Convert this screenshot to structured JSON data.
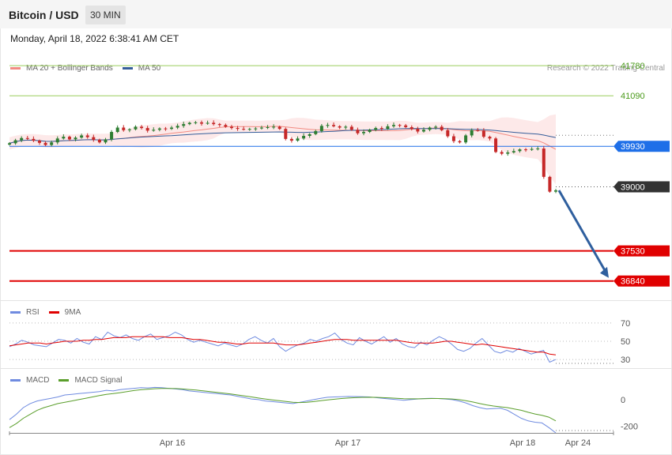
{
  "header": {
    "title": "Bitcoin / USD",
    "timeframe": "30 MIN"
  },
  "datetime": "Monday, April 18, 2022 6:38:41 AM CET",
  "credit": "Research © 2022 Trading Central",
  "colors": {
    "bb": "#f28b82",
    "ma50": "#355e9a",
    "level": "#9acd5c",
    "support": "#e00000",
    "price": "#333333",
    "resistance_blue": "#1e6fe8",
    "rsi": "#6f8be0",
    "rsi_ma": "#e00000",
    "macd": "#6f8be0",
    "signal": "#5a9e2b",
    "up_candle": "#2e7d32",
    "down_candle": "#c62828"
  },
  "main_legend": [
    {
      "label": "MA 20 + Bollinger Bands",
      "color": "#f28b82"
    },
    {
      "label": "MA 50",
      "color": "#355e9a"
    }
  ],
  "rsi_legend": [
    {
      "label": "RSI",
      "color": "#6f8be0"
    },
    {
      "label": "9MA",
      "color": "#e00000"
    }
  ],
  "macd_legend": [
    {
      "label": "MACD",
      "color": "#6f8be0"
    },
    {
      "label": "MACD Signal",
      "color": "#5a9e2b"
    }
  ],
  "chart_data": [
    {
      "type": "candlestick",
      "title": "Bitcoin / USD",
      "ylim": [
        36400,
        42200
      ],
      "price_levels": [
        {
          "value": 41780,
          "label": "41780",
          "style": "green-line"
        },
        {
          "value": 41090,
          "label": "41090",
          "style": "green-line"
        },
        {
          "value": 39930,
          "label": "39930",
          "style": "blue-tag"
        },
        {
          "value": 39000,
          "label": "39000",
          "style": "dark-tag"
        },
        {
          "value": 37530,
          "label": "37530",
          "style": "red-tag"
        },
        {
          "value": 36840,
          "label": "36840",
          "style": "red-tag"
        }
      ],
      "x_ticks": [
        "Apr 16",
        "Apr 17",
        "Apr 18",
        "Apr 24"
      ],
      "close_series": [
        40000,
        40070,
        40120,
        40100,
        40060,
        40010,
        39960,
        40020,
        40110,
        40150,
        40090,
        40130,
        40180,
        40140,
        40080,
        40020,
        40090,
        40260,
        40360,
        40300,
        40320,
        40380,
        40350,
        40290,
        40310,
        40340,
        40330,
        40360,
        40400,
        40440,
        40470,
        40480,
        40450,
        40470,
        40440,
        40420,
        40380,
        40350,
        40330,
        40320,
        40330,
        40340,
        40360,
        40370,
        40380,
        40330,
        40100,
        40060,
        40110,
        40170,
        40210,
        40280,
        40400,
        40420,
        40390,
        40360,
        40380,
        40310,
        40230,
        40260,
        40310,
        40350,
        40330,
        40390,
        40420,
        40410,
        40370,
        40330,
        40270,
        40310,
        40360,
        40380,
        40300,
        40160,
        40050,
        40020,
        40180,
        40300,
        40290,
        40150,
        40110,
        39800,
        39760,
        39790,
        39820,
        39860,
        39850,
        39870,
        39880,
        39230,
        38890,
        38920
      ]
    },
    {
      "type": "line",
      "title": "RSI",
      "ylim": [
        24,
        76
      ],
      "y_ticks": [
        70,
        50,
        30
      ],
      "series": [
        {
          "name": "RSI",
          "values": [
            44,
            47,
            51,
            49,
            46,
            45,
            44,
            48,
            52,
            51,
            48,
            53,
            49,
            47,
            55,
            52,
            60,
            56,
            54,
            57,
            53,
            51,
            55,
            58,
            52,
            54,
            56,
            60,
            57,
            52,
            49,
            51,
            49,
            47,
            45,
            48,
            46,
            44,
            47,
            52,
            55,
            51,
            48,
            53,
            44,
            39,
            43,
            46,
            48,
            52,
            50,
            53,
            55,
            59,
            52,
            48,
            46,
            54,
            50,
            47,
            51,
            55,
            49,
            53,
            47,
            44,
            43,
            49,
            46,
            51,
            55,
            52,
            47,
            41,
            39,
            42,
            48,
            53,
            46,
            39,
            37,
            40,
            38,
            42,
            39,
            36,
            38,
            40,
            27,
            30
          ]
        },
        {
          "name": "9MA",
          "values": [
            45,
            46,
            47,
            48,
            48,
            48,
            47,
            48,
            49,
            50,
            50,
            50,
            51,
            51,
            52,
            52,
            53,
            54,
            54,
            54,
            55,
            55,
            55,
            55,
            55,
            55,
            54,
            54,
            54,
            53,
            52,
            52,
            51,
            50,
            49,
            49,
            48,
            47,
            47,
            48,
            48,
            48,
            48,
            48,
            47,
            46,
            46,
            46,
            47,
            48,
            49,
            50,
            51,
            52,
            52,
            52,
            51,
            51,
            51,
            51,
            51,
            51,
            51,
            51,
            50,
            49,
            48,
            48,
            48,
            48,
            49,
            50,
            50,
            49,
            48,
            47,
            46,
            47,
            46,
            45,
            44,
            43,
            42,
            41,
            40,
            39,
            38,
            38,
            36,
            35
          ]
        }
      ]
    },
    {
      "type": "line",
      "title": "MACD",
      "ylim": [
        -250,
        130
      ],
      "y_ticks": [
        0,
        -200
      ],
      "series": [
        {
          "name": "MACD",
          "values": [
            -150,
            -110,
            -60,
            -30,
            -10,
            0,
            10,
            20,
            35,
            40,
            45,
            50,
            55,
            60,
            70,
            65,
            75,
            80,
            85,
            90,
            88,
            92,
            90,
            85,
            80,
            75,
            65,
            60,
            55,
            50,
            45,
            40,
            35,
            25,
            15,
            5,
            0,
            -10,
            -15,
            -20,
            -25,
            -30,
            -20,
            -10,
            0,
            10,
            18,
            20,
            22,
            24,
            23,
            22,
            20,
            15,
            10,
            5,
            0,
            -5,
            0,
            5,
            8,
            10,
            8,
            5,
            0,
            -10,
            -25,
            -45,
            -60,
            -70,
            -68,
            -65,
            -80,
            -110,
            -140,
            -160,
            -170,
            -175,
            -210,
            -250
          ]
        },
        {
          "name": "MACD Signal",
          "values": [
            -210,
            -180,
            -140,
            -110,
            -80,
            -60,
            -45,
            -30,
            -20,
            -10,
            0,
            10,
            20,
            30,
            40,
            45,
            52,
            60,
            68,
            74,
            78,
            82,
            84,
            84,
            83,
            80,
            76,
            72,
            66,
            60,
            54,
            48,
            42,
            35,
            28,
            20,
            12,
            5,
            -2,
            -8,
            -14,
            -20,
            -22,
            -20,
            -15,
            -8,
            -2,
            3,
            8,
            12,
            15,
            17,
            18,
            17,
            15,
            13,
            10,
            7,
            6,
            6,
            7,
            8,
            8,
            7,
            5,
            0,
            -8,
            -18,
            -30,
            -40,
            -48,
            -54,
            -60,
            -70,
            -80,
            -95,
            -108,
            -118,
            -132,
            -160
          ]
        }
      ]
    }
  ]
}
